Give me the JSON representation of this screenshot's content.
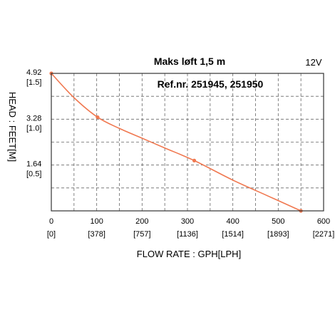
{
  "chart_data": {
    "type": "line",
    "title": "Maks løft 1,5 m",
    "subtitle": "Ref.nr. 251945, 251950",
    "annotation": "12V",
    "xlabel": "FLOW RATE : GPH[LPH]",
    "ylabel": "HEAD : FEET[M]",
    "xlim": [
      0,
      600
    ],
    "ylim": [
      0,
      4.92
    ],
    "x_ticks": [
      {
        "value": 0,
        "label": "0",
        "sublabel": "[0]"
      },
      {
        "value": 100,
        "label": "100",
        "sublabel": "[378]"
      },
      {
        "value": 200,
        "label": "200",
        "sublabel": "[757]"
      },
      {
        "value": 300,
        "label": "300",
        "sublabel": "[1136]"
      },
      {
        "value": 400,
        "label": "400",
        "sublabel": "[1514]"
      },
      {
        "value": 500,
        "label": "500",
        "sublabel": "[1893]"
      },
      {
        "value": 600,
        "label": "600",
        "sublabel": "[2271]"
      }
    ],
    "y_ticks": [
      {
        "value": 4.92,
        "label": "4.92",
        "sublabel": "[1.5]"
      },
      {
        "value": 3.28,
        "label": "3.28",
        "sublabel": "[1.0]"
      },
      {
        "value": 1.64,
        "label": "1.64",
        "sublabel": "[0.5]"
      }
    ],
    "grid": true,
    "series": [
      {
        "color": "#f07850",
        "points": [
          {
            "x": 0,
            "y": 4.92
          },
          {
            "x": 50,
            "y": 4.05
          },
          {
            "x": 102,
            "y": 3.35
          },
          {
            "x": 150,
            "y": 2.95
          },
          {
            "x": 200,
            "y": 2.6
          },
          {
            "x": 250,
            "y": 2.25
          },
          {
            "x": 315,
            "y": 1.8
          },
          {
            "x": 400,
            "y": 1.1
          },
          {
            "x": 475,
            "y": 0.55
          },
          {
            "x": 550,
            "y": 0.0
          }
        ],
        "markers": [
          {
            "x": 0,
            "y": 4.92
          },
          {
            "x": 102,
            "y": 3.35
          },
          {
            "x": 315,
            "y": 1.8
          },
          {
            "x": 550,
            "y": 0.0
          }
        ]
      }
    ]
  }
}
